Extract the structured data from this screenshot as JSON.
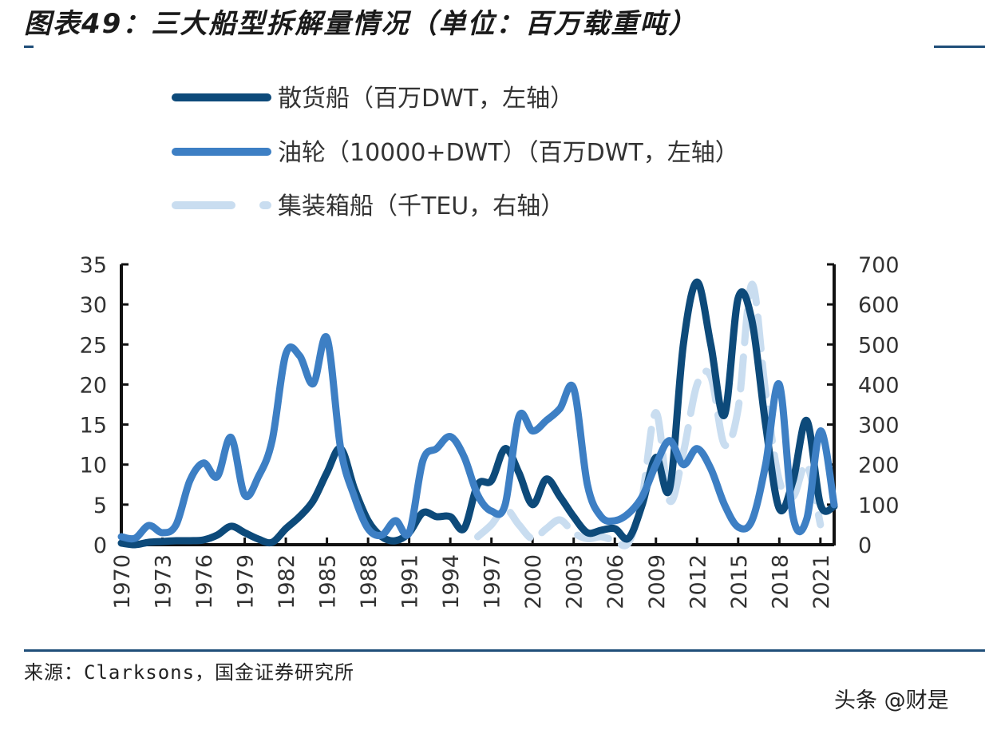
{
  "header": {
    "title": "图表49：三大船型拆解量情况（单位：百万载重吨）"
  },
  "footer": {
    "source": "来源：Clarksons，国金证券研究所",
    "watermark": "头条 @财是"
  },
  "chart_data": {
    "type": "line",
    "title": "图表49：三大船型拆解量情况（单位：百万载重吨）",
    "x": [
      1970,
      1971,
      1972,
      1973,
      1974,
      1975,
      1976,
      1977,
      1978,
      1979,
      1980,
      1981,
      1982,
      1983,
      1984,
      1985,
      1986,
      1987,
      1988,
      1989,
      1990,
      1991,
      1992,
      1993,
      1994,
      1995,
      1996,
      1997,
      1998,
      1999,
      2000,
      2001,
      2002,
      2003,
      2004,
      2005,
      2006,
      2007,
      2008,
      2009,
      2010,
      2011,
      2012,
      2013,
      2014,
      2015,
      2016,
      2017,
      2018,
      2019,
      2020,
      2021,
      2022
    ],
    "x_tick_labels": [
      "1970",
      "1973",
      "1976",
      "1979",
      "1982",
      "1985",
      "1988",
      "1991",
      "1994",
      "1997",
      "2000",
      "2003",
      "2006",
      "2009",
      "2012",
      "2015",
      "2018",
      "2021"
    ],
    "y_left": {
      "range": [
        0,
        35
      ],
      "ticks": [
        "0",
        "5",
        "10",
        "15",
        "20",
        "25",
        "30",
        "35"
      ]
    },
    "y_right": {
      "range": [
        0,
        700
      ],
      "ticks": [
        "0",
        "100",
        "200",
        "300",
        "400",
        "500",
        "600",
        "700"
      ]
    },
    "grid": false,
    "legend_position": "top",
    "series": [
      {
        "name": "散货船（百万DWT，左轴）",
        "axis": "left",
        "color": "#0d4a7a",
        "style": "solid",
        "values": [
          0.2,
          0,
          0.3,
          0.4,
          0.5,
          0.5,
          0.6,
          1.2,
          2.3,
          1.5,
          0.7,
          0.3,
          2,
          3.5,
          5.5,
          9,
          12,
          7,
          3,
          1,
          0.5,
          1.5,
          4,
          3.5,
          3.5,
          2,
          7.5,
          8,
          12,
          9,
          5,
          8.2,
          6,
          3.5,
          1.5,
          1.8,
          2,
          0.8,
          5,
          10.9,
          7,
          25,
          32.8,
          25,
          16.2,
          30.8,
          28,
          15,
          4.5,
          8,
          15.5,
          5,
          4.8
        ]
      },
      {
        "name": "油轮（10000+DWT）（百万DWT，左轴）",
        "axis": "left",
        "color": "#3d7fc4",
        "style": "solid",
        "values": [
          1,
          0.8,
          2.4,
          1.5,
          2.5,
          8,
          10.2,
          8.5,
          13.4,
          6.2,
          8.5,
          13,
          23.8,
          23.6,
          20.1,
          25.8,
          12,
          6,
          2,
          1.2,
          3,
          1.5,
          10.5,
          12,
          13.5,
          11,
          6.2,
          4.2,
          5,
          16,
          14.2,
          15.5,
          17,
          19.5,
          7.5,
          3.5,
          3,
          3.9,
          6,
          10,
          13,
          10,
          12,
          9.5,
          5,
          2.2,
          3,
          10,
          20,
          3.5,
          3.2,
          14.2,
          5
        ]
      },
      {
        "name": "集装箱船（千TEU，右轴）",
        "axis": "right",
        "color": "#c9ddf0",
        "style": "dashed",
        "values": [
          null,
          null,
          null,
          null,
          null,
          null,
          null,
          null,
          null,
          null,
          null,
          null,
          null,
          null,
          null,
          null,
          null,
          null,
          null,
          null,
          null,
          null,
          null,
          null,
          null,
          null,
          20,
          50,
          90,
          50,
          15,
          40,
          62,
          30,
          15,
          20,
          10,
          5,
          120,
          330,
          110,
          230,
          400,
          420,
          250,
          340,
          650,
          380,
          160,
          120,
          200,
          50,
          null
        ]
      }
    ]
  }
}
